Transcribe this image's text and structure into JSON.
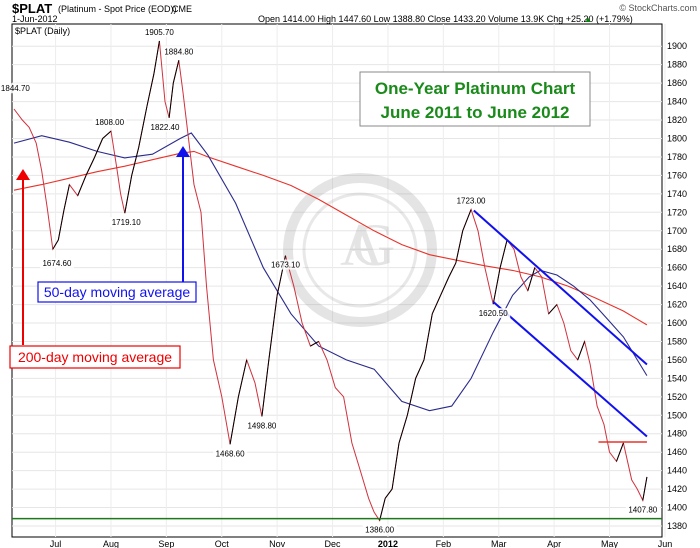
{
  "header": {
    "symbol": "$PLAT",
    "description": "(Platinum - Spot Price (EOD))",
    "exchange": "CME",
    "date": "1-Jun-2012",
    "watermark": "© StockCharts.com",
    "panel_label": "$PLAT (Daily)",
    "ohlc_text": "Open 1414.00  High 1447.60  Low 1388.80  Close 1433.20  Volume 13.9K  Chg +25.20 (+1.79%)",
    "chg_arrow": "▲"
  },
  "annotations": {
    "title_line1": "One-Year Platinum Chart",
    "title_line2": "June 2011 to June 2012",
    "ma50_label": "50-day moving average",
    "ma200_label": "200-day moving average"
  },
  "colors": {
    "price": "#d0313d",
    "price_dark": "#000000",
    "ma50": "#2b2b8c",
    "ma200": "#e8332b",
    "title_green": "#1a8a1a",
    "channel": "#1111ee",
    "support": "#1a7a1a",
    "resistance": "#e8332b"
  },
  "chart_data": {
    "type": "line",
    "xlabels": [
      "Jul",
      "Aug",
      "Sep",
      "Oct",
      "Nov",
      "Dec",
      "2012",
      "Feb",
      "Mar",
      "Apr",
      "May",
      "Jun"
    ],
    "ylim": [
      1380,
      1910
    ],
    "yticks": [
      1380,
      1400,
      1420,
      1440,
      1460,
      1480,
      1500,
      1520,
      1540,
      1560,
      1580,
      1600,
      1620,
      1640,
      1660,
      1680,
      1700,
      1720,
      1740,
      1760,
      1780,
      1800,
      1820,
      1840,
      1860,
      1880,
      1900
    ],
    "series": [
      {
        "key": "price",
        "values": [
          [
            0.0,
            1832
          ],
          [
            0.3,
            1820
          ],
          [
            0.55,
            1812
          ],
          [
            0.8,
            1795
          ],
          [
            1.0,
            1765
          ],
          [
            1.2,
            1725
          ],
          [
            1.4,
            1680
          ],
          [
            1.6,
            1690
          ],
          [
            1.8,
            1722
          ],
          [
            2.0,
            1750
          ],
          [
            2.3,
            1738
          ],
          [
            2.6,
            1760
          ],
          [
            2.9,
            1779
          ],
          [
            3.2,
            1800
          ],
          [
            3.5,
            1808
          ],
          [
            3.7,
            1770
          ],
          [
            3.85,
            1740
          ],
          [
            4.0,
            1719.1
          ],
          [
            4.25,
            1760
          ],
          [
            4.5,
            1790
          ],
          [
            4.8,
            1835
          ],
          [
            5.05,
            1870
          ],
          [
            5.25,
            1905.7
          ],
          [
            5.45,
            1840
          ],
          [
            5.6,
            1822.4
          ],
          [
            5.75,
            1860
          ],
          [
            5.95,
            1884.8
          ],
          [
            6.1,
            1850
          ],
          [
            6.3,
            1800
          ],
          [
            6.5,
            1750
          ],
          [
            6.75,
            1720
          ],
          [
            6.95,
            1640
          ],
          [
            7.2,
            1560
          ],
          [
            7.5,
            1520
          ],
          [
            7.8,
            1468.6
          ],
          [
            8.1,
            1520
          ],
          [
            8.4,
            1560
          ],
          [
            8.7,
            1535
          ],
          [
            8.95,
            1498.8
          ],
          [
            9.2,
            1560
          ],
          [
            9.5,
            1630
          ],
          [
            9.8,
            1673.1
          ],
          [
            10.1,
            1640
          ],
          [
            10.4,
            1600
          ],
          [
            10.7,
            1575
          ],
          [
            11.0,
            1580
          ],
          [
            11.3,
            1560
          ],
          [
            11.6,
            1530
          ],
          [
            11.9,
            1520
          ],
          [
            12.2,
            1470
          ],
          [
            12.5,
            1440
          ],
          [
            12.8,
            1410
          ],
          [
            13.0,
            1395
          ],
          [
            13.2,
            1386
          ],
          [
            13.4,
            1410
          ],
          [
            13.65,
            1420
          ],
          [
            13.9,
            1470
          ],
          [
            14.2,
            1500
          ],
          [
            14.5,
            1540
          ],
          [
            14.8,
            1560
          ],
          [
            15.1,
            1610
          ],
          [
            15.4,
            1630
          ],
          [
            15.7,
            1650
          ],
          [
            15.95,
            1665
          ],
          [
            16.2,
            1700
          ],
          [
            16.5,
            1723
          ],
          [
            16.75,
            1700
          ],
          [
            17.0,
            1660
          ],
          [
            17.3,
            1620.5
          ],
          [
            17.55,
            1660
          ],
          [
            17.8,
            1690
          ],
          [
            18.05,
            1680
          ],
          [
            18.3,
            1650
          ],
          [
            18.55,
            1635
          ],
          [
            18.8,
            1660
          ],
          [
            19.05,
            1650
          ],
          [
            19.3,
            1610
          ],
          [
            19.6,
            1620
          ],
          [
            19.85,
            1600
          ],
          [
            20.1,
            1570
          ],
          [
            20.35,
            1560
          ],
          [
            20.6,
            1580
          ],
          [
            20.8,
            1555
          ],
          [
            21.05,
            1510
          ],
          [
            21.3,
            1490
          ],
          [
            21.5,
            1460
          ],
          [
            21.75,
            1450
          ],
          [
            22.0,
            1470
          ],
          [
            22.3,
            1430
          ],
          [
            22.5,
            1420
          ],
          [
            22.7,
            1407.8
          ],
          [
            22.85,
            1433.2
          ]
        ]
      },
      {
        "key": "ma50",
        "values": [
          [
            0.0,
            1795
          ],
          [
            1.0,
            1803
          ],
          [
            2.0,
            1796
          ],
          [
            3.0,
            1786
          ],
          [
            4.0,
            1779
          ],
          [
            5.0,
            1783
          ],
          [
            6.0,
            1800
          ],
          [
            6.4,
            1806
          ],
          [
            7.0,
            1782
          ],
          [
            8.0,
            1730
          ],
          [
            9.0,
            1660
          ],
          [
            10.0,
            1610
          ],
          [
            11.0,
            1575
          ],
          [
            12.0,
            1560
          ],
          [
            13.0,
            1550
          ],
          [
            14.0,
            1515
          ],
          [
            15.0,
            1505
          ],
          [
            15.8,
            1510
          ],
          [
            16.5,
            1540
          ],
          [
            17.3,
            1590
          ],
          [
            18.0,
            1630
          ],
          [
            18.6,
            1650
          ],
          [
            19.0,
            1657
          ],
          [
            19.6,
            1652
          ],
          [
            20.2,
            1640
          ],
          [
            20.8,
            1625
          ],
          [
            21.4,
            1605
          ],
          [
            22.0,
            1585
          ],
          [
            22.5,
            1560
          ],
          [
            22.85,
            1543
          ]
        ]
      },
      {
        "key": "ma200",
        "values": [
          [
            0.0,
            1744
          ],
          [
            1.0,
            1750
          ],
          [
            2.0,
            1757
          ],
          [
            3.0,
            1764
          ],
          [
            4.0,
            1770
          ],
          [
            5.0,
            1777
          ],
          [
            6.0,
            1784
          ],
          [
            6.5,
            1786
          ],
          [
            7.0,
            1780
          ],
          [
            8.0,
            1770
          ],
          [
            9.0,
            1760
          ],
          [
            10.0,
            1749
          ],
          [
            11.0,
            1734
          ],
          [
            12.0,
            1717
          ],
          [
            13.0,
            1700
          ],
          [
            14.0,
            1685
          ],
          [
            15.0,
            1674
          ],
          [
            16.0,
            1668
          ],
          [
            17.0,
            1662
          ],
          [
            18.0,
            1657
          ],
          [
            19.0,
            1650
          ],
          [
            20.0,
            1640
          ],
          [
            21.0,
            1627
          ],
          [
            22.0,
            1613
          ],
          [
            22.85,
            1598
          ]
        ]
      }
    ],
    "price_labels": [
      {
        "text": "1844.70",
        "x": 0.05,
        "y": 1844.7
      },
      {
        "text": "1674.60",
        "x": 1.55,
        "y": 1674.6
      },
      {
        "text": "1808.00",
        "x": 3.45,
        "y": 1808
      },
      {
        "text": "1719.10",
        "x": 4.05,
        "y": 1719.1
      },
      {
        "text": "1905.70",
        "x": 5.25,
        "y": 1905.7
      },
      {
        "text": "1884.80",
        "x": 5.95,
        "y": 1884.8
      },
      {
        "text": "1822.40",
        "x": 5.45,
        "y": 1822.4
      },
      {
        "text": "1468.60",
        "x": 7.8,
        "y": 1468.6
      },
      {
        "text": "1498.80",
        "x": 8.95,
        "y": 1498.8
      },
      {
        "text": "1673.10",
        "x": 9.8,
        "y": 1673.1
      },
      {
        "text": "1386.00",
        "x": 13.2,
        "y": 1386
      },
      {
        "text": "1723.00",
        "x": 16.5,
        "y": 1723
      },
      {
        "text": "1620.50",
        "x": 17.3,
        "y": 1620.5
      },
      {
        "text": "1407.80",
        "x": 22.7,
        "y": 1407.8
      }
    ],
    "channel_lines": [
      {
        "x1": 16.6,
        "y1": 1722,
        "x2": 22.85,
        "y2": 1555
      },
      {
        "x1": 17.3,
        "y1": 1623,
        "x2": 22.85,
        "y2": 1477
      }
    ],
    "support_line": {
      "y": 1388
    },
    "resistance_segment": {
      "x1": 21.1,
      "x2": 22.85,
      "y": 1471
    }
  }
}
